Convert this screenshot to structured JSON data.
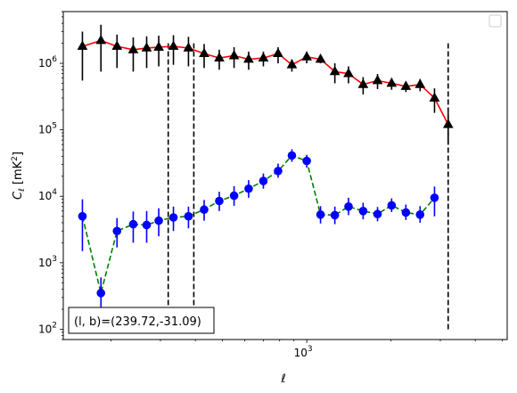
{
  "chart_data": {
    "type": "scatter",
    "xlabel": "ℓ",
    "ylabel": "C_ℓ  [mK²]",
    "xscale": "log",
    "yscale": "log",
    "xlim": [
      135,
      5200
    ],
    "ylim": [
      70,
      6000000
    ],
    "grid": false,
    "legend": "top-right (empty)",
    "annotation": "(l, b)=(239.72,-31.09)",
    "x_tick_labels": [
      {
        "value": 1000,
        "base": "10",
        "exp": "3"
      }
    ],
    "y_tick_labels": [
      {
        "value": 100,
        "base": "10",
        "exp": "2"
      },
      {
        "value": 1000,
        "base": "10",
        "exp": "3"
      },
      {
        "value": 10000,
        "base": "10",
        "exp": "4"
      },
      {
        "value": 100000,
        "base": "10",
        "exp": "5"
      },
      {
        "value": 1000000,
        "base": "10",
        "exp": "6"
      }
    ],
    "vlines": [
      320,
      395,
      3200
    ],
    "vline_range": [
      100,
      2000000
    ],
    "x": [
      158,
      184,
      210,
      240,
      268,
      296,
      334,
      378,
      430,
      487,
      550,
      620,
      700,
      790,
      885,
      1000,
      1120,
      1260,
      1410,
      1590,
      1790,
      2010,
      2260,
      2540,
      2860,
      3200,
      3600,
      4050,
      4550
    ],
    "series": [
      {
        "color": "#ff0000",
        "linestyle": "solid",
        "marker": "triangle",
        "marker_color": "#000000",
        "values": [
          1800000,
          2200000,
          1800000,
          1600000,
          1700000,
          1750000,
          1800000,
          1700000,
          1400000,
          1200000,
          1300000,
          1150000,
          1200000,
          1400000,
          950000,
          1250000,
          1150000,
          750000,
          700000,
          480000,
          550000,
          500000,
          450000,
          480000,
          300000,
          120000,
          null,
          null,
          null
        ],
        "err_low": [
          1250000,
          1450000,
          950000,
          850000,
          850000,
          850000,
          850000,
          800000,
          550000,
          400000,
          450000,
          350000,
          300000,
          400000,
          200000,
          250000,
          150000,
          250000,
          200000,
          140000,
          140000,
          100000,
          80000,
          100000,
          120000,
          60000,
          null,
          null,
          null
        ],
        "err_high": [
          1200000,
          1600000,
          900000,
          850000,
          850000,
          850000,
          850000,
          800000,
          550000,
          400000,
          450000,
          350000,
          300000,
          350000,
          200000,
          250000,
          150000,
          250000,
          200000,
          140000,
          140000,
          100000,
          80000,
          100000,
          120000,
          60000,
          null,
          null,
          null
        ]
      },
      {
        "color": "#008000",
        "linestyle": "dashed",
        "marker": "circle",
        "marker_color": "#0000ff",
        "values": [
          5000,
          350,
          3000,
          3800,
          3700,
          4300,
          4800,
          5000,
          6300,
          8500,
          10200,
          13000,
          17000,
          24000,
          41000,
          34000,
          5300,
          5200,
          7000,
          6000,
          5400,
          7300,
          5700,
          5300,
          9500,
          null,
          null,
          null,
          null
        ],
        "err_low": [
          3500,
          220,
          1300,
          1800,
          1700,
          1800,
          1800,
          1700,
          2000,
          2500,
          3000,
          3500,
          4000,
          5000,
          8000,
          7000,
          1400,
          1400,
          1800,
          1500,
          1200,
          1500,
          1300,
          1300,
          4500,
          null,
          null,
          null,
          null
        ],
        "err_high": [
          4000,
          250,
          1700,
          2100,
          2300,
          2300,
          2200,
          2000,
          2500,
          3200,
          4000,
          4500,
          5000,
          7000,
          10000,
          8000,
          1800,
          1800,
          2500,
          2000,
          1500,
          2000,
          1800,
          1800,
          4500,
          null,
          null,
          null,
          null
        ]
      }
    ]
  }
}
